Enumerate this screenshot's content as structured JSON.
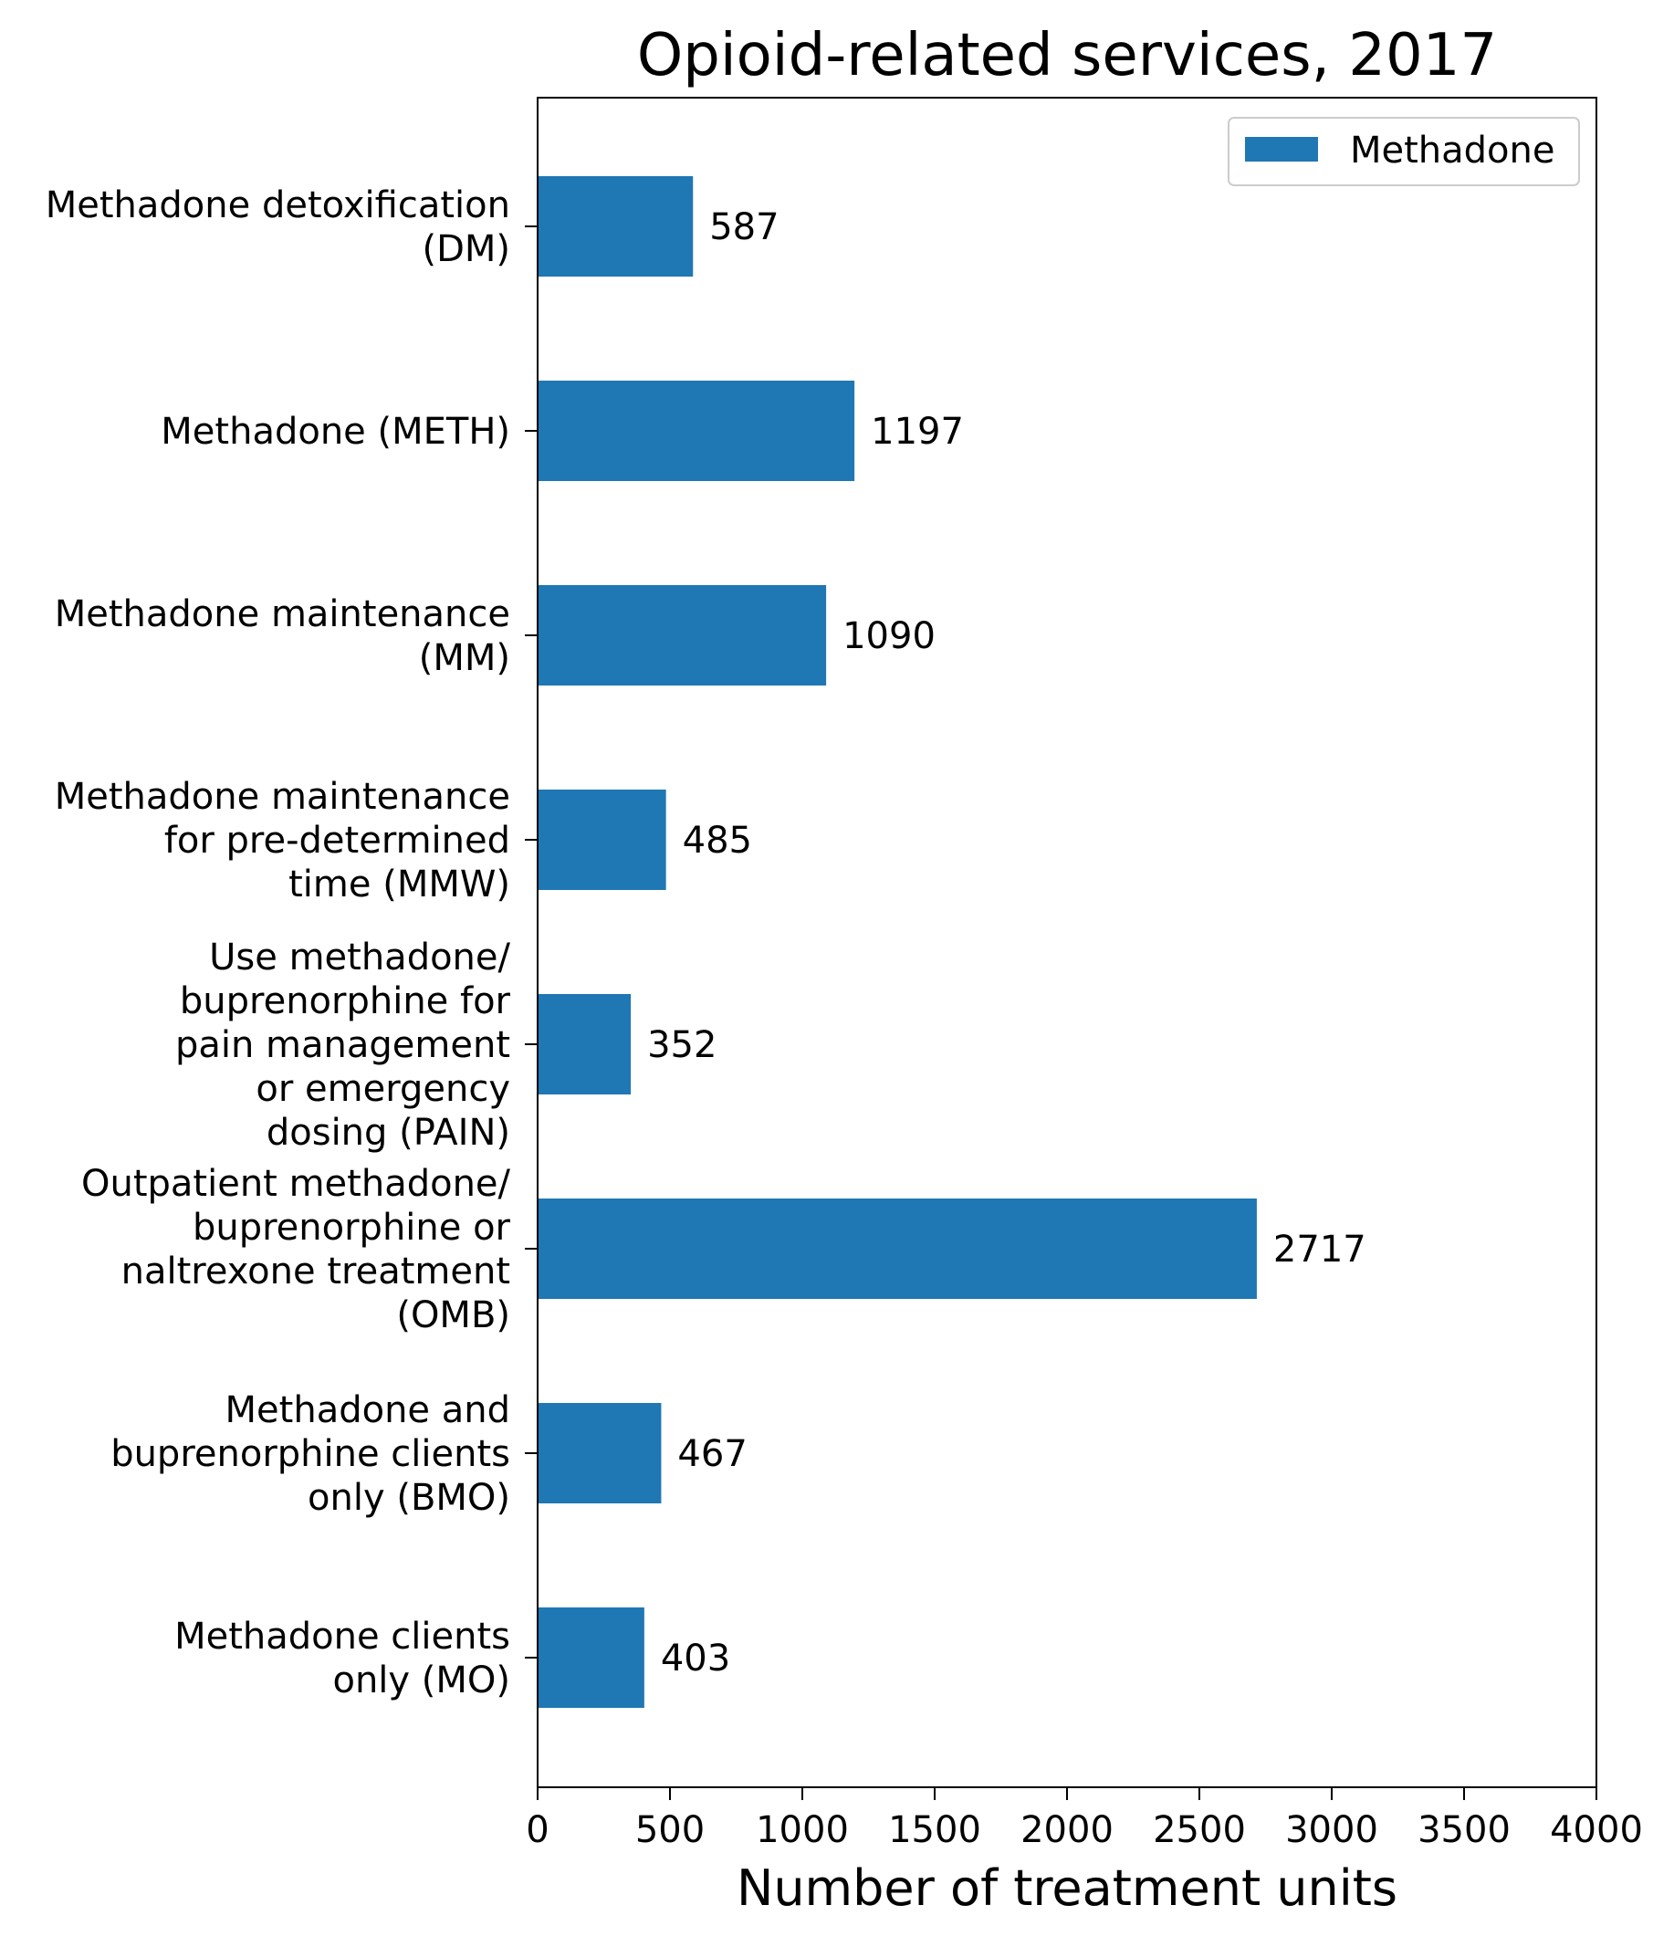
{
  "chart_data": {
    "type": "bar",
    "orientation": "horizontal",
    "title": "Opioid-related services, 2017",
    "xlabel": "Number of treatment units",
    "ylabel": "",
    "xlim": [
      0,
      4000
    ],
    "xticks": [
      "0",
      "500",
      "1000",
      "1500",
      "2000",
      "2500",
      "3000",
      "3500",
      "4000"
    ],
    "grid": false,
    "legend_position": "top-right",
    "categories": [
      [
        "Methadone detoxification",
        "(DM)"
      ],
      [
        "Methadone (METH)"
      ],
      [
        "Methadone maintenance",
        "(MM)"
      ],
      [
        "Methadone maintenance",
        "for pre-determined",
        "time (MMW)"
      ],
      [
        "Use methadone/",
        "buprenorphine for",
        "pain management",
        "or emergency",
        "dosing (PAIN)"
      ],
      [
        "Outpatient methadone/",
        "buprenorphine or",
        "naltrexone treatment",
        "(OMB)"
      ],
      [
        "Methadone and",
        "buprenorphine clients",
        "only (BMO)"
      ],
      [
        "Methadone clients",
        "only (MO)"
      ]
    ],
    "series": [
      {
        "name": "Methadone",
        "color": "#1f77b4",
        "values": [
          587,
          1197,
          1090,
          485,
          352,
          2717,
          467,
          403
        ],
        "labels": [
          "587",
          "1197",
          "1090",
          "485",
          "352",
          "2717",
          "467",
          "403"
        ]
      }
    ]
  }
}
